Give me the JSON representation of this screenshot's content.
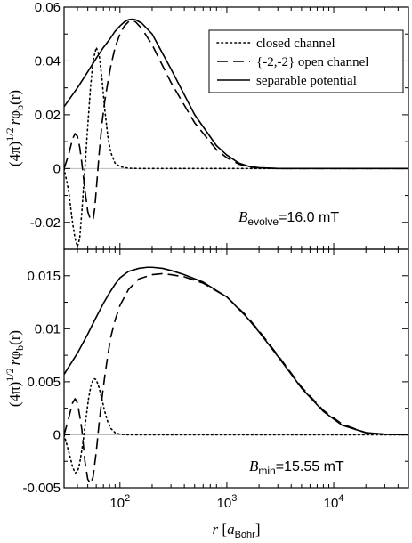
{
  "chart_data": [
    {
      "type": "line",
      "panel": "top",
      "ylabel": "(4π)^1/2 rφb(r)",
      "ylabel_parts": {
        "pre": "(4π)",
        "exp": "1/2",
        "r": "r",
        "phi": "φ",
        "sub": "b",
        "arg": "(r)"
      },
      "xscale": "log",
      "xlim": [
        30,
        50000
      ],
      "ylim": [
        -0.03,
        0.06
      ],
      "yticks": [
        -0.02,
        0,
        0.02,
        0.04,
        0.06
      ],
      "ytick_labels": [
        "-0.02",
        "0",
        "0.02",
        "0.04",
        "0.06"
      ],
      "annotation": {
        "symbol": "B",
        "subscript": "evolve",
        "value": "=16.0 mT"
      },
      "legend": {
        "placement": "top-right",
        "entries": [
          {
            "label": "closed channel",
            "style": "dotted"
          },
          {
            "label": "{-2,-2} open channel",
            "style": "dashed"
          },
          {
            "label": "separable potential",
            "style": "solid"
          }
        ]
      },
      "series": [
        {
          "name": "closed channel",
          "style": "dotted",
          "x": [
            30,
            33,
            36,
            38,
            40,
            42,
            44,
            47,
            50,
            53,
            56,
            60,
            64,
            68,
            72,
            77,
            82,
            90,
            100,
            120,
            150,
            200,
            300,
            50000
          ],
          "y": [
            0,
            -0.008,
            -0.02,
            -0.026,
            -0.029,
            -0.026,
            -0.016,
            0,
            0.016,
            0.03,
            0.04,
            0.045,
            0.042,
            0.033,
            0.022,
            0.012,
            0.006,
            0.002,
            0.0007,
            0.0001,
            0,
            0,
            0,
            0
          ]
        },
        {
          "name": "{-2,-2} open channel",
          "style": "dashed",
          "x": [
            30,
            33,
            36,
            38,
            40,
            42,
            44,
            47,
            50,
            53,
            56,
            58,
            60,
            64,
            68,
            72,
            77,
            82,
            90,
            100,
            110,
            120,
            130,
            140,
            160,
            200,
            300,
            500,
            800,
            1000,
            1300,
            1600,
            2000,
            3000,
            5000,
            50000
          ],
          "y": [
            0,
            0.005,
            0.011,
            0.013,
            0.012,
            0.008,
            0.002,
            -0.008,
            -0.016,
            -0.019,
            -0.019,
            -0.015,
            -0.008,
            0.006,
            0.017,
            0.025,
            0.032,
            0.038,
            0.045,
            0.05,
            0.053,
            0.0545,
            0.055,
            0.0545,
            0.052,
            0.046,
            0.032,
            0.017,
            0.007,
            0.004,
            0.0016,
            0.0006,
            0.0002,
            0,
            0,
            0
          ]
        },
        {
          "name": "separable potential",
          "style": "solid",
          "x": [
            30,
            40,
            50,
            60,
            70,
            80,
            90,
            100,
            110,
            120,
            130,
            140,
            160,
            200,
            300,
            500,
            800,
            1000,
            1300,
            1600,
            2000,
            3000,
            5000,
            50000
          ],
          "y": [
            0.023,
            0.03,
            0.036,
            0.041,
            0.045,
            0.048,
            0.051,
            0.053,
            0.0545,
            0.0553,
            0.0555,
            0.0553,
            0.054,
            0.05,
            0.037,
            0.02,
            0.0085,
            0.005,
            0.002,
            0.0008,
            0.0003,
            0,
            0,
            0
          ]
        }
      ]
    },
    {
      "type": "line",
      "panel": "bottom",
      "xlabel": "r [aBohr]",
      "xlabel_parts": {
        "r": "r",
        "pre": " [",
        "a": "a",
        "sub": "Bohr",
        "post": "]"
      },
      "ylabel": "(4π)^1/2 rφb(r)",
      "ylabel_parts": {
        "pre": "(4π)",
        "exp": "1/2",
        "r": "r",
        "phi": "φ",
        "sub": "b",
        "arg": "(r)"
      },
      "xscale": "log",
      "xlim": [
        30,
        50000
      ],
      "ylim": [
        -0.005,
        0.0175
      ],
      "yticks": [
        -0.005,
        0,
        0.005,
        0.01,
        0.015
      ],
      "ytick_labels": [
        "-0.005",
        "0",
        "0.005",
        "0.01",
        "0.015"
      ],
      "xticks": [
        100,
        1000,
        10000
      ],
      "xtick_labels": [
        {
          "base": "10",
          "exp": "2"
        },
        {
          "base": "10",
          "exp": "3"
        },
        {
          "base": "10",
          "exp": "4"
        }
      ],
      "annotation": {
        "symbol": "B",
        "subscript": "min",
        "value": "=15.55 mT"
      },
      "series": [
        {
          "name": "closed channel",
          "style": "dotted",
          "x": [
            30,
            33,
            36,
            38,
            40,
            42,
            45,
            48,
            51,
            54,
            57,
            60,
            64,
            68,
            72,
            77,
            82,
            90,
            100,
            120,
            150,
            200,
            50000
          ],
          "y": [
            0,
            -0.0015,
            -0.003,
            -0.0036,
            -0.0035,
            -0.0027,
            -0.0008,
            0.0015,
            0.0035,
            0.0048,
            0.0053,
            0.0052,
            0.0044,
            0.0033,
            0.0022,
            0.0012,
            0.0006,
            0.0002,
            5e-05,
            0,
            0,
            0,
            0
          ]
        },
        {
          "name": "{-2,-2} open channel",
          "style": "dashed",
          "x": [
            30,
            33,
            36,
            38,
            40,
            42,
            44,
            47,
            50,
            53,
            56,
            60,
            64,
            68,
            72,
            77,
            82,
            90,
            100,
            120,
            150,
            200,
            250,
            300,
            400,
            600,
            1000,
            1500,
            2000,
            3000,
            5000,
            8000,
            12000,
            20000,
            30000,
            50000
          ],
          "y": [
            0,
            0.0015,
            0.003,
            0.0034,
            0.003,
            0.0018,
            0.0005,
            -0.0025,
            -0.0042,
            -0.0046,
            -0.004,
            -0.0016,
            0.0012,
            0.0035,
            0.0055,
            0.0075,
            0.0092,
            0.0108,
            0.0122,
            0.0137,
            0.0147,
            0.0151,
            0.0152,
            0.0151,
            0.0149,
            0.0143,
            0.013,
            0.0113,
            0.0098,
            0.0075,
            0.0045,
            0.0023,
            0.001,
            0.0002,
            5e-05,
            0
          ]
        },
        {
          "name": "separable potential",
          "style": "solid",
          "x": [
            30,
            40,
            50,
            60,
            70,
            80,
            90,
            100,
            120,
            150,
            180,
            200,
            250,
            300,
            400,
            600,
            1000,
            1500,
            2000,
            3000,
            5000,
            8000,
            12000,
            20000,
            30000,
            50000
          ],
          "y": [
            0.0057,
            0.0077,
            0.0095,
            0.0111,
            0.0124,
            0.0134,
            0.0142,
            0.0148,
            0.0154,
            0.0157,
            0.0158,
            0.0158,
            0.0157,
            0.0155,
            0.0151,
            0.0144,
            0.013,
            0.0112,
            0.0097,
            0.0074,
            0.0044,
            0.0022,
            0.0009,
            0.0002,
            5e-05,
            0
          ]
        }
      ]
    }
  ]
}
